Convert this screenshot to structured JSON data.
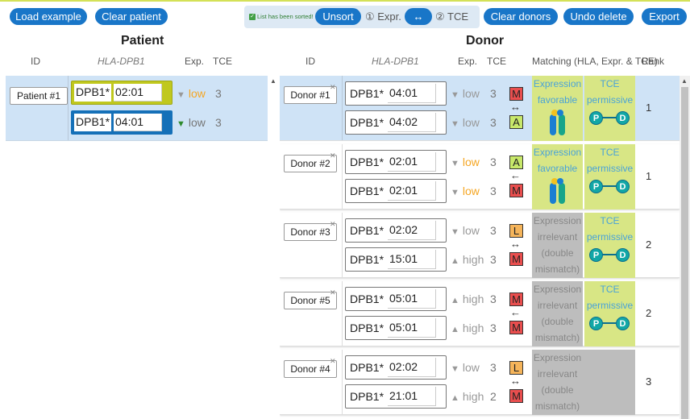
{
  "toolbar": {
    "load_example": "Load example",
    "clear_patient": "Clear patient",
    "sorted_note": "List has been sorted!",
    "unsort": "Unsort",
    "sort_opt1": "① Expr.",
    "swap": "↔",
    "sort_opt2": "② TCE",
    "clear_donors": "Clear donors",
    "undo_delete": "Undo delete",
    "export": "Export"
  },
  "patient": {
    "title": "Patient",
    "headers": {
      "id": "ID",
      "hla": "HLA-DPB1",
      "expr": "Exp.",
      "tce": "TCE"
    },
    "row": {
      "id": "Patient #1",
      "alleles": [
        {
          "prefix": "DPB1*",
          "value": "02:01",
          "expr": "low",
          "tce": "3"
        },
        {
          "prefix": "DPB1*",
          "value": "04:01",
          "expr": "low",
          "tce": "3"
        }
      ]
    }
  },
  "donor": {
    "title": "Donor",
    "headers": {
      "id": "ID",
      "hla": "HLA-DPB1",
      "expr": "Exp.",
      "tce": "TCE",
      "matching": "Matching (HLA, Expr. & TCE)",
      "rank": "Rank"
    },
    "rows": [
      {
        "id": "Donor #1",
        "alleles": [
          {
            "prefix": "DPB1*",
            "value": "04:01",
            "expr": "low",
            "tce": "3",
            "badge": "M"
          },
          {
            "prefix": "DPB1*",
            "value": "04:02",
            "expr": "low",
            "tce": "3",
            "badge": "A"
          }
        ],
        "arrow": "↔",
        "expr_panel": [
          "Expression",
          "favorable"
        ],
        "tce_panel": [
          "TCE",
          "permissive"
        ],
        "rank": "1"
      },
      {
        "id": "Donor #2",
        "alleles": [
          {
            "prefix": "DPB1*",
            "value": "02:01",
            "expr": "low",
            "tce": "3",
            "badge": "A"
          },
          {
            "prefix": "DPB1*",
            "value": "02:01",
            "expr": "low",
            "tce": "3",
            "badge": "M"
          }
        ],
        "arrow": "←",
        "expr_panel": [
          "Expression",
          "favorable"
        ],
        "tce_panel": [
          "TCE",
          "permissive"
        ],
        "rank": "1"
      },
      {
        "id": "Donor #3",
        "alleles": [
          {
            "prefix": "DPB1*",
            "value": "02:02",
            "expr": "low",
            "tce": "3",
            "badge": "L"
          },
          {
            "prefix": "DPB1*",
            "value": "15:01",
            "expr": "high",
            "tce": "3",
            "badge": "M"
          }
        ],
        "arrow": "↔",
        "expr_panel": [
          "Expression",
          "irrelevant",
          "(double",
          "mismatch)"
        ],
        "tce_panel": [
          "TCE",
          "permissive"
        ],
        "rank": "2"
      },
      {
        "id": "Donor #5",
        "alleles": [
          {
            "prefix": "DPB1*",
            "value": "05:01",
            "expr": "high",
            "tce": "3",
            "badge": "M"
          },
          {
            "prefix": "DPB1*",
            "value": "05:01",
            "expr": "high",
            "tce": "3",
            "badge": "M"
          }
        ],
        "arrow": "←",
        "expr_panel": [
          "Expression",
          "irrelevant",
          "(double",
          "mismatch)"
        ],
        "tce_panel": [
          "TCE",
          "permissive"
        ],
        "rank": "2"
      },
      {
        "id": "Donor #4",
        "alleles": [
          {
            "prefix": "DPB1*",
            "value": "02:02",
            "expr": "low",
            "tce": "3",
            "badge": "L"
          },
          {
            "prefix": "DPB1*",
            "value": "21:01",
            "expr": "high",
            "tce": "2",
            "badge": "M"
          }
        ],
        "arrow": "↔",
        "expr_panel": [
          "Expression",
          "irrelevant",
          "(double",
          "mismatch)"
        ],
        "tce_panel": [],
        "rank": "3"
      }
    ]
  },
  "pd_labels": {
    "p": "P",
    "d": "D"
  },
  "colors": {
    "accent": "#1976c8",
    "selected": "#cfe3f6",
    "favorable": "#d8e685",
    "irrelevant": "#bdbdbd",
    "mismatch": "#e94e4e",
    "match": "#c8e86a",
    "low": "#f5a623"
  },
  "icons": [
    "close-icon",
    "triangle-down-icon",
    "triangle-up-icon",
    "checkbox-icon",
    "molecule-icon",
    "pd-link-icon",
    "scroll-up-icon"
  ]
}
